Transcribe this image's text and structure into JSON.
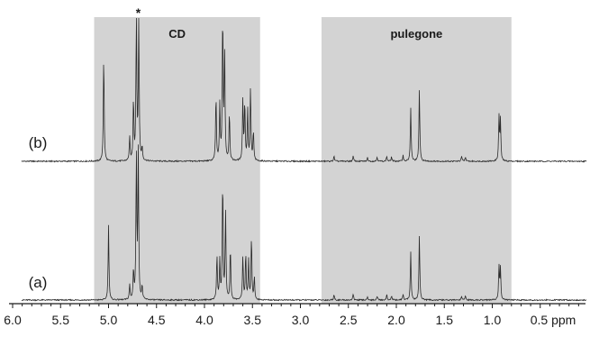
{
  "chart_data": {
    "type": "line",
    "title": "",
    "xlabel": "",
    "ylabel": "",
    "x_unit": "ppm",
    "x_reversed": true,
    "xlim": [
      6.0,
      0.0
    ],
    "x_ticks": [
      "6.0",
      "5.5",
      "5.0",
      "4.5",
      "4.0",
      "3.5",
      "3.0",
      "2.5",
      "2.0",
      "1.5",
      "1.0",
      "0.5 ppm"
    ],
    "x_tick_values": [
      6.0,
      5.5,
      5.0,
      4.5,
      4.0,
      3.5,
      3.0,
      2.5,
      2.0,
      1.5,
      1.0,
      0.5
    ],
    "grid": false,
    "shaded_regions": [
      {
        "label": "CD",
        "x_from": 5.15,
        "x_to": 3.42,
        "color": "#d3d3d3"
      },
      {
        "label": "pulegone",
        "x_from": 2.78,
        "x_to": 0.8,
        "color": "#d3d3d3"
      }
    ],
    "annotations": [
      {
        "text": "*",
        "x": 4.69
      }
    ],
    "series": [
      {
        "name": "(b)",
        "peaks": [
          [
            5.05,
            7.3
          ],
          [
            4.78,
            1.6
          ],
          [
            4.74,
            4.2
          ],
          [
            4.71,
            9.99
          ],
          [
            4.685,
            9.99
          ],
          [
            4.65,
            0.9
          ],
          [
            3.88,
            4.5
          ],
          [
            3.84,
            3.8
          ],
          [
            3.81,
            9.99
          ],
          [
            3.79,
            7.5
          ],
          [
            3.74,
            3.3
          ],
          [
            3.6,
            4.2
          ],
          [
            3.58,
            4.0
          ],
          [
            3.55,
            3.5
          ],
          [
            3.52,
            5.0
          ],
          [
            3.49,
            2.0
          ],
          [
            2.65,
            0.35
          ],
          [
            2.45,
            0.35
          ],
          [
            2.3,
            0.25
          ],
          [
            2.2,
            0.3
          ],
          [
            2.1,
            0.35
          ],
          [
            2.05,
            0.3
          ],
          [
            1.93,
            0.4
          ],
          [
            1.85,
            3.6
          ],
          [
            1.76,
            4.9
          ],
          [
            1.32,
            0.35
          ],
          [
            1.28,
            0.3
          ],
          [
            0.93,
            3.0
          ],
          [
            0.915,
            2.8
          ]
        ]
      },
      {
        "name": "(a)",
        "peaks": [
          [
            5.0,
            5.1
          ],
          [
            4.78,
            1.0
          ],
          [
            4.74,
            2.0
          ],
          [
            4.71,
            9.99
          ],
          [
            4.69,
            9.99
          ],
          [
            4.65,
            0.9
          ],
          [
            3.87,
            3.1
          ],
          [
            3.84,
            2.7
          ],
          [
            3.81,
            8.3
          ],
          [
            3.78,
            6.0
          ],
          [
            3.73,
            3.6
          ],
          [
            3.6,
            3.0
          ],
          [
            3.57,
            3.2
          ],
          [
            3.54,
            2.7
          ],
          [
            3.51,
            4.3
          ],
          [
            3.48,
            1.5
          ],
          [
            2.65,
            0.4
          ],
          [
            2.45,
            0.4
          ],
          [
            2.3,
            0.25
          ],
          [
            2.2,
            0.3
          ],
          [
            2.1,
            0.35
          ],
          [
            2.05,
            0.3
          ],
          [
            1.93,
            0.4
          ],
          [
            1.85,
            3.3
          ],
          [
            1.76,
            4.4
          ],
          [
            1.32,
            0.3
          ],
          [
            1.28,
            0.3
          ],
          [
            0.93,
            2.3
          ],
          [
            0.915,
            2.2
          ]
        ]
      }
    ]
  }
}
